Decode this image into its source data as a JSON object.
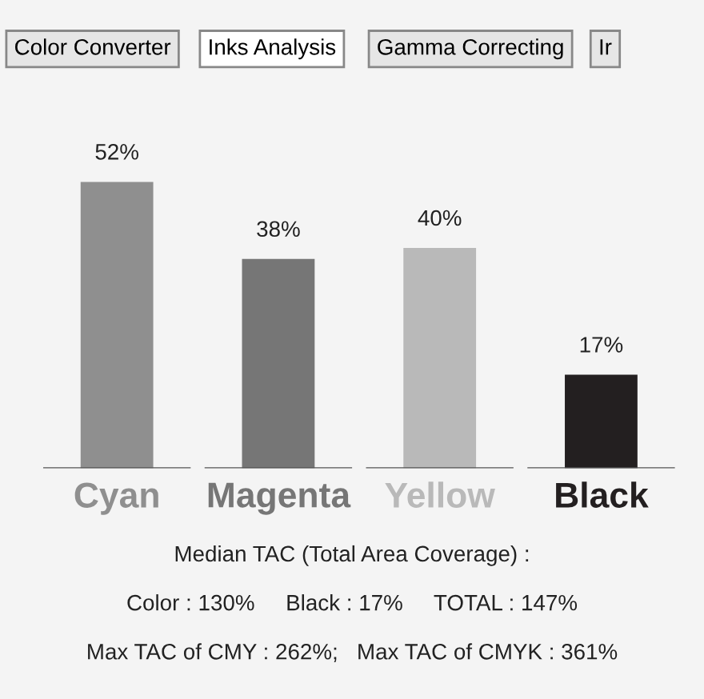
{
  "chart_data": {
    "type": "bar",
    "categories": [
      "Cyan",
      "Magenta",
      "Yellow",
      "Black"
    ],
    "values": [
      52,
      38,
      40,
      17
    ],
    "colors": [
      "#8f8f8f",
      "#767676",
      "#b9b9b9",
      "#231f20"
    ],
    "value_labels": [
      "52%",
      "38%",
      "40%",
      "17%"
    ],
    "annotations": [
      "Color Converter",
      "Inks Analysis",
      "Gamma Correcting",
      "Ir",
      "Median TAC (Total Area Coverage) :",
      "Color : 130%     Black : 17%     TOTAL : 147%",
      "Max TAC of CMY : 262%;   Max TAC of CMYK : 361%"
    ],
    "grid": false,
    "legend": false
  }
}
